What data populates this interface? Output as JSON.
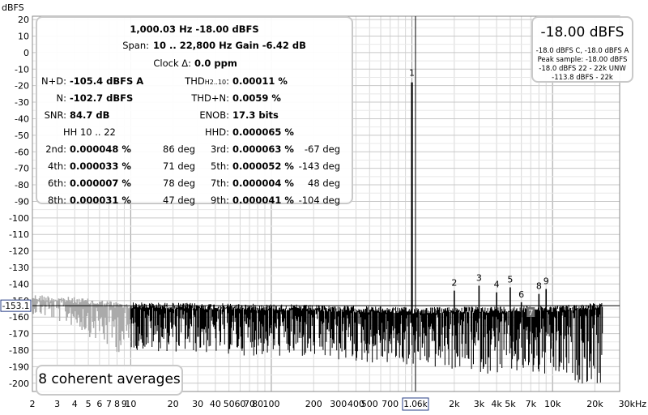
{
  "chart_data": {
    "type": "line",
    "title": "",
    "ylabel": "dBFS",
    "xlabel": "",
    "x_unit_label": "30kHz",
    "x_scale": "log",
    "xlim": [
      2,
      30000
    ],
    "ylim": [
      -205,
      22
    ],
    "y_ticks": [
      20,
      10,
      0,
      -10,
      -20,
      -30,
      -40,
      -50,
      -60,
      -70,
      -80,
      -90,
      -100,
      -110,
      -120,
      -130,
      -140,
      -150,
      -160,
      -170,
      -180,
      -190,
      -200
    ],
    "x_tick_labels": [
      {
        "v": 2,
        "t": "2"
      },
      {
        "v": 3,
        "t": "3"
      },
      {
        "v": 4,
        "t": "4"
      },
      {
        "v": 5,
        "t": "5"
      },
      {
        "v": 6,
        "t": "6"
      },
      {
        "v": 7,
        "t": "7"
      },
      {
        "v": 8,
        "t": "8"
      },
      {
        "v": 9,
        "t": "9"
      },
      {
        "v": 10,
        "t": "10"
      },
      {
        "v": 20,
        "t": "20"
      },
      {
        "v": 30,
        "t": "30"
      },
      {
        "v": 40,
        "t": "40"
      },
      {
        "v": 50,
        "t": "50"
      },
      {
        "v": 60,
        "t": "60"
      },
      {
        "v": 70,
        "t": "70"
      },
      {
        "v": 80,
        "t": "80"
      },
      {
        "v": 100,
        "t": "100"
      },
      {
        "v": 200,
        "t": "200"
      },
      {
        "v": 300,
        "t": "300"
      },
      {
        "v": 400,
        "t": "400"
      },
      {
        "v": 500,
        "t": "500"
      },
      {
        "v": 700,
        "t": "700"
      },
      {
        "v": 2000,
        "t": "2k"
      },
      {
        "v": 3000,
        "t": "3k"
      },
      {
        "v": 4000,
        "t": "4k"
      },
      {
        "v": 5000,
        "t": "5k"
      },
      {
        "v": 7000,
        "t": "7k"
      },
      {
        "v": 10000,
        "t": "10k"
      },
      {
        "v": 20000,
        "t": "20k"
      }
    ],
    "cursor": {
      "x": 1060,
      "x_label": "1.06k",
      "y": -153.1,
      "y_label": "-153.1"
    },
    "span_hz": [
      10,
      22800
    ],
    "fundamental": {
      "x": 1000,
      "y": -18,
      "label": "1"
    },
    "harmonics": [
      {
        "label": "2",
        "x": 2000,
        "y": -144
      },
      {
        "label": "3",
        "x": 3000,
        "y": -141
      },
      {
        "label": "4",
        "x": 4000,
        "y": -145
      },
      {
        "label": "5",
        "x": 5000,
        "y": -142
      },
      {
        "label": "6",
        "x": 6000,
        "y": -151
      },
      {
        "label": "7",
        "x": 7000,
        "y": -155
      },
      {
        "label": "8",
        "x": 8000,
        "y": -146
      },
      {
        "label": "9",
        "x": 9000,
        "y": -143
      }
    ],
    "noise_floor": [
      {
        "x": 10,
        "top": -151,
        "bottom": -178
      },
      {
        "x": 100,
        "top": -152,
        "bottom": -182
      },
      {
        "x": 1000,
        "top": -154,
        "bottom": -188
      },
      {
        "x": 10000,
        "top": -153,
        "bottom": -196
      },
      {
        "x": 22800,
        "top": -151,
        "bottom": -200
      }
    ],
    "below_span_noise": [
      {
        "x": 2,
        "top": -146,
        "bottom": -156
      },
      {
        "x": 4,
        "top": -148,
        "bottom": -164
      },
      {
        "x": 7,
        "top": -150,
        "bottom": -178
      },
      {
        "x": 10,
        "top": -152,
        "bottom": -182
      }
    ],
    "colors": {
      "trace": "#000000",
      "below_span": "#aaaaaa",
      "grid": "#d8d8d8",
      "cursor": "#000000"
    }
  },
  "stats": {
    "header1": "1,000.03 Hz  -18.00 dBFS",
    "header2_label": "Span:",
    "header2_value": "10 .. 22,800 Hz   Gain -6.42 dB",
    "clock_label": "Clock Δ:",
    "clock_value": "0.0 ppm",
    "nd_label": "N+D:",
    "nd_value": "-105.4 dBFS A",
    "thd_label": "THD",
    "thd_sub": "H2..10",
    "thd_sep": ":",
    "thd_value": "0.00011 %",
    "n_label": "N:",
    "n_value": "-102.7 dBFS",
    "thdn_label": "THD+N:",
    "thdn_value": "0.0059 %",
    "snr_label": "SNR:",
    "snr_value": "84.7 dB",
    "enob_label": "ENOB:",
    "enob_value": "17.3 bits",
    "hh_label": "HH 10 .. 22",
    "hhd_label": "HHD:",
    "hhd_value": "0.000065 %",
    "harmonic_rows": [
      {
        "la": "2nd:",
        "va": "0.000048 %",
        "da": "86 deg",
        "lb": "3rd:",
        "vb": "0.000063 %",
        "db": "-67 deg"
      },
      {
        "la": "4th:",
        "va": "0.000033 %",
        "da": "71 deg",
        "lb": "5th:",
        "vb": "0.000052 %",
        "db": "-143 deg"
      },
      {
        "la": "6th:",
        "va": "0.000007 %",
        "da": "78 deg",
        "lb": "7th:",
        "vb": "0.000004 %",
        "db": "48 deg"
      },
      {
        "la": "8th:",
        "va": "0.000031 %",
        "da": "47 deg",
        "lb": "9th:",
        "vb": "0.000041 %",
        "db": "-104 deg"
      }
    ]
  },
  "level": {
    "main": "-18.00 dBFS",
    "lines": [
      "-18.0 dBFS C, -18.0 dBFS A",
      "Peak sample: -18.00 dBFS",
      "-18.0 dBFS 22 - 22k UNW",
      "-113.8 dBFS - 22k"
    ]
  },
  "averages": {
    "label": "8 coherent averages"
  }
}
